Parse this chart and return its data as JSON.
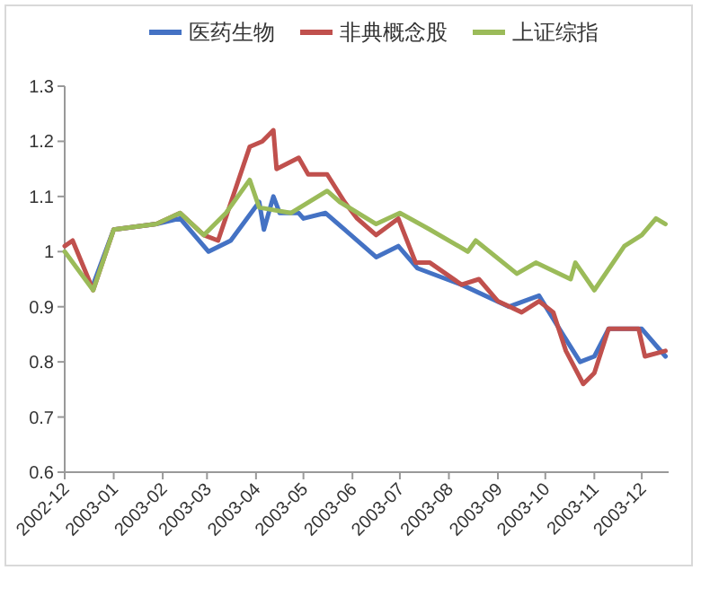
{
  "chart_data": {
    "type": "line",
    "legend": "top",
    "grid": false,
    "marker": "none",
    "line_style": "solid",
    "ylim": [
      0.6,
      1.3
    ],
    "yticks": [
      0.6,
      0.7,
      0.8,
      0.9,
      {
        "value": 1,
        "label": "1"
      },
      1.1,
      1.2,
      1.3
    ],
    "xlim": [
      "2002-12-01",
      "2003-12-18"
    ],
    "xticks": [
      {
        "value": "2002-12-01",
        "label": "2002-12"
      },
      {
        "value": "2003-01-01",
        "label": "2003-01"
      },
      {
        "value": "2003-02-01",
        "label": "2003-02"
      },
      {
        "value": "2003-03-01",
        "label": "2003-03"
      },
      {
        "value": "2003-04-01",
        "label": "2003-04"
      },
      {
        "value": "2003-05-01",
        "label": "2003-05"
      },
      {
        "value": "2003-06-01",
        "label": "2003-06"
      },
      {
        "value": "2003-07-01",
        "label": "2003-07"
      },
      {
        "value": "2003-08-01",
        "label": "2003-08"
      },
      {
        "value": "2003-09-01",
        "label": "2003-09"
      },
      {
        "value": "2003-10-01",
        "label": "2003-10"
      },
      {
        "value": "2003-11-01",
        "label": "2003-11"
      },
      {
        "value": "2003-12-01",
        "label": "2003-12"
      }
    ],
    "series": [
      {
        "name": "医药生物",
        "color": "#4472c4",
        "x": [
          "2002-12-19",
          "2003-01-01",
          "2003-01-28",
          "2003-02-12",
          "2003-03-02",
          "2003-03-16",
          "2003-04-03",
          "2003-04-06",
          "2003-04-12",
          "2003-04-16",
          "2003-04-28",
          "2003-05-01",
          "2003-05-15",
          "2003-05-27",
          "2003-06-16",
          "2003-06-30",
          "2003-07-12",
          "2003-08-09",
          "2003-09-08",
          "2003-09-27",
          "2003-10-12",
          "2003-10-23",
          "2003-11-01",
          "2003-11-10",
          "2003-12-01",
          "2003-12-16"
        ],
        "values": [
          0.94,
          1.04,
          1.05,
          1.06,
          1.0,
          1.02,
          1.09,
          1.04,
          1.1,
          1.07,
          1.07,
          1.06,
          1.07,
          1.04,
          0.99,
          1.01,
          0.97,
          0.94,
          0.9,
          0.92,
          0.85,
          0.8,
          0.81,
          0.86,
          0.86,
          0.81
        ]
      },
      {
        "name": "非典概念股",
        "color": "#c0504d",
        "x": [
          "2002-12-01",
          "2002-12-06",
          "2002-12-19",
          "2003-01-01",
          "2003-01-28",
          "2003-02-12",
          "2003-02-27",
          "2003-03-08",
          "2003-03-28",
          "2003-04-05",
          "2003-04-12",
          "2003-04-14",
          "2003-04-28",
          "2003-05-04",
          "2003-05-16",
          "2003-05-27",
          "2003-06-04",
          "2003-06-16",
          "2003-06-30",
          "2003-07-11",
          "2003-07-20",
          "2003-08-09",
          "2003-08-20",
          "2003-09-01",
          "2003-09-16",
          "2003-09-27",
          "2003-10-06",
          "2003-10-14",
          "2003-10-25",
          "2003-11-01",
          "2003-11-10",
          "2003-11-20",
          "2003-11-29",
          "2003-12-03",
          "2003-12-16"
        ],
        "values": [
          1.01,
          1.02,
          0.93,
          1.04,
          1.05,
          1.07,
          1.03,
          1.02,
          1.19,
          1.2,
          1.22,
          1.15,
          1.17,
          1.14,
          1.14,
          1.09,
          1.06,
          1.03,
          1.06,
          0.98,
          0.98,
          0.94,
          0.95,
          0.91,
          0.89,
          0.91,
          0.89,
          0.82,
          0.76,
          0.78,
          0.86,
          0.86,
          0.86,
          0.81,
          0.82
        ]
      },
      {
        "name": "上证综指",
        "color": "#9bbb59",
        "x": [
          "2002-12-01",
          "2002-12-19",
          "2003-01-01",
          "2003-01-28",
          "2003-02-12",
          "2003-02-27",
          "2003-03-13",
          "2003-03-28",
          "2003-04-03",
          "2003-04-23",
          "2003-05-16",
          "2003-05-24",
          "2003-06-16",
          "2003-07-01",
          "2003-07-20",
          "2003-08-13",
          "2003-08-18",
          "2003-09-13",
          "2003-09-25",
          "2003-10-17",
          "2003-10-20",
          "2003-11-01",
          "2003-11-20",
          "2003-12-01",
          "2003-12-10",
          "2003-12-16"
        ],
        "values": [
          1.0,
          0.93,
          1.04,
          1.05,
          1.07,
          1.03,
          1.07,
          1.13,
          1.08,
          1.07,
          1.11,
          1.09,
          1.05,
          1.07,
          1.04,
          1.0,
          1.02,
          0.96,
          0.98,
          0.95,
          0.98,
          0.93,
          1.01,
          1.03,
          1.06,
          1.05
        ]
      }
    ]
  }
}
